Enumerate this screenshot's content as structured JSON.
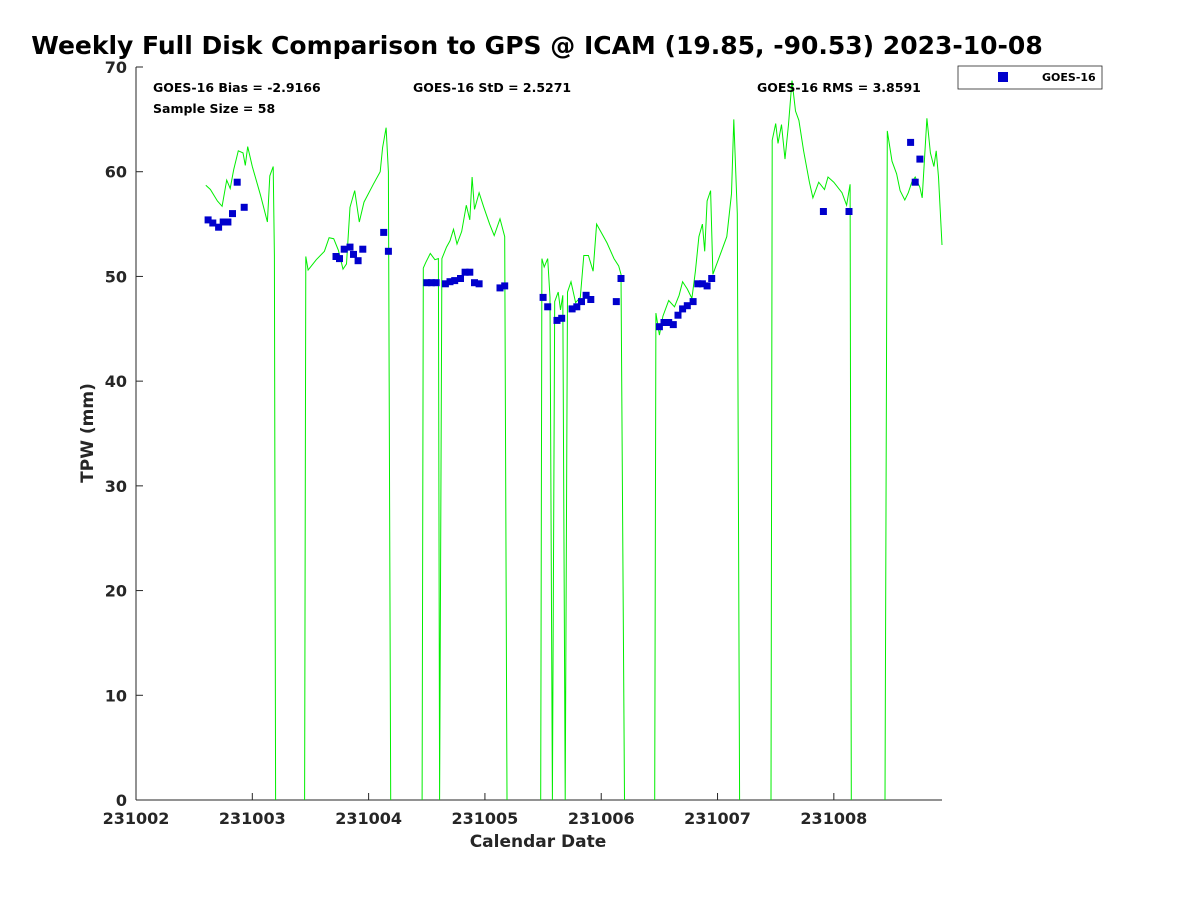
{
  "chart_data": {
    "type": "scatter",
    "title": "Weekly Full Disk Comparison to GPS @ ICAM (19.85, -90.53) 2023-10-08",
    "xlabel": "Calendar Date",
    "ylabel": "TPW (mm)",
    "xlim": [
      231002,
      231008.93
    ],
    "ylim": [
      0,
      70
    ],
    "x_ticks": [
      231002,
      231003,
      231004,
      231005,
      231006,
      231007,
      231008
    ],
    "x_tick_labels": [
      "231002",
      "231003",
      "231004",
      "231005",
      "231006",
      "231007",
      "231008"
    ],
    "y_ticks": [
      0,
      10,
      20,
      30,
      40,
      50,
      60,
      70
    ],
    "y_tick_labels": [
      "0",
      "10",
      "20",
      "30",
      "40",
      "50",
      "60",
      "70"
    ],
    "grid": false,
    "legend_position": "outside-top-right",
    "annotations": {
      "bias": "GOES-16 Bias = -2.9166",
      "std": "GOES-16 StD = 2.5271",
      "rms": "GOES-16 RMS = 3.8591",
      "sample_size": "Sample Size = 58"
    },
    "series": [
      {
        "name": "GOES-16",
        "kind": "scatter",
        "marker": "square",
        "color": "#0000cc",
        "points": [
          [
            231002.62,
            55.4
          ],
          [
            231002.66,
            55.1
          ],
          [
            231002.71,
            54.7
          ],
          [
            231002.75,
            55.2
          ],
          [
            231002.79,
            55.2
          ],
          [
            231002.83,
            56.0
          ],
          [
            231002.87,
            59.0
          ],
          [
            231002.93,
            56.6
          ],
          [
            231003.72,
            51.9
          ],
          [
            231003.75,
            51.7
          ],
          [
            231003.79,
            52.6
          ],
          [
            231003.84,
            52.8
          ],
          [
            231003.87,
            52.1
          ],
          [
            231003.91,
            51.5
          ],
          [
            231003.95,
            52.6
          ],
          [
            231004.13,
            54.2
          ],
          [
            231004.17,
            52.4
          ],
          [
            231004.5,
            49.4
          ],
          [
            231004.54,
            49.4
          ],
          [
            231004.58,
            49.4
          ],
          [
            231004.66,
            49.3
          ],
          [
            231004.7,
            49.5
          ],
          [
            231004.74,
            49.6
          ],
          [
            231004.79,
            49.8
          ],
          [
            231004.83,
            50.4
          ],
          [
            231004.87,
            50.4
          ],
          [
            231004.91,
            49.4
          ],
          [
            231004.95,
            49.3
          ],
          [
            231005.13,
            48.9
          ],
          [
            231005.17,
            49.1
          ],
          [
            231005.5,
            48.0
          ],
          [
            231005.54,
            47.1
          ],
          [
            231005.62,
            45.8
          ],
          [
            231005.66,
            46.0
          ],
          [
            231005.75,
            46.9
          ],
          [
            231005.79,
            47.1
          ],
          [
            231005.83,
            47.6
          ],
          [
            231005.87,
            48.2
          ],
          [
            231005.91,
            47.8
          ],
          [
            231006.13,
            47.6
          ],
          [
            231006.17,
            49.8
          ],
          [
            231006.5,
            45.2
          ],
          [
            231006.54,
            45.6
          ],
          [
            231006.58,
            45.6
          ],
          [
            231006.62,
            45.4
          ],
          [
            231006.66,
            46.3
          ],
          [
            231006.7,
            46.9
          ],
          [
            231006.74,
            47.2
          ],
          [
            231006.79,
            47.6
          ],
          [
            231006.83,
            49.3
          ],
          [
            231006.87,
            49.3
          ],
          [
            231006.91,
            49.1
          ],
          [
            231006.95,
            49.8
          ],
          [
            231007.91,
            56.2
          ],
          [
            231008.13,
            56.2
          ],
          [
            231008.66,
            62.8
          ],
          [
            231008.7,
            59.0
          ],
          [
            231008.74,
            61.2
          ]
        ]
      },
      {
        "name": "",
        "kind": "line",
        "color": "#00ee00",
        "segments": [
          [
            [
              231002.6,
              58.7
            ],
            [
              231002.64,
              58.3
            ],
            [
              231002.7,
              57.2
            ],
            [
              231002.74,
              56.7
            ],
            [
              231002.78,
              59.2
            ],
            [
              231002.81,
              58.4
            ],
            [
              231002.84,
              60.2
            ],
            [
              231002.88,
              62.0
            ],
            [
              231002.92,
              61.8
            ],
            [
              231002.94,
              60.6
            ],
            [
              231002.96,
              62.4
            ],
            [
              231003.0,
              60.5
            ],
            [
              231003.07,
              57.8
            ],
            [
              231003.13,
              55.2
            ],
            [
              231003.15,
              59.6
            ],
            [
              231003.18,
              60.5
            ],
            [
              231003.19,
              52.0
            ],
            [
              231003.2,
              0
            ]
          ],
          [
            [
              231003.45,
              0
            ],
            [
              231003.46,
              51.9
            ],
            [
              231003.48,
              50.6
            ],
            [
              231003.55,
              51.6
            ],
            [
              231003.62,
              52.4
            ],
            [
              231003.66,
              53.7
            ],
            [
              231003.7,
              53.6
            ],
            [
              231003.74,
              52.5
            ],
            [
              231003.78,
              50.7
            ],
            [
              231003.81,
              51.2
            ],
            [
              231003.84,
              56.6
            ],
            [
              231003.88,
              58.2
            ],
            [
              231003.92,
              55.2
            ],
            [
              231003.96,
              57.1
            ],
            [
              231004.04,
              58.8
            ],
            [
              231004.1,
              60.0
            ],
            [
              231004.12,
              62.3
            ],
            [
              231004.15,
              64.2
            ],
            [
              231004.17,
              60.0
            ],
            [
              231004.19,
              0
            ]
          ],
          [
            [
              231004.46,
              0
            ],
            [
              231004.47,
              50.8
            ],
            [
              231004.49,
              51.3
            ],
            [
              231004.53,
              52.2
            ],
            [
              231004.57,
              51.6
            ],
            [
              231004.6,
              51.7
            ],
            [
              231004.61,
              0
            ],
            [
              231004.63,
              51.7
            ],
            [
              231004.67,
              52.8
            ],
            [
              231004.7,
              53.4
            ],
            [
              231004.73,
              54.5
            ],
            [
              231004.76,
              53.1
            ],
            [
              231004.8,
              54.3
            ],
            [
              231004.84,
              56.8
            ],
            [
              231004.87,
              55.4
            ],
            [
              231004.89,
              59.5
            ],
            [
              231004.91,
              56.4
            ],
            [
              231004.95,
              58.0
            ],
            [
              231004.99,
              56.6
            ],
            [
              231005.04,
              55.0
            ],
            [
              231005.08,
              53.9
            ],
            [
              231005.13,
              55.5
            ],
            [
              231005.17,
              53.8
            ],
            [
              231005.19,
              0
            ]
          ],
          [
            [
              231005.48,
              0
            ],
            [
              231005.49,
              51.7
            ],
            [
              231005.51,
              50.9
            ],
            [
              231005.54,
              51.7
            ],
            [
              231005.56,
              48.0
            ],
            [
              231005.58,
              0
            ],
            [
              231005.6,
              47.6
            ],
            [
              231005.63,
              48.5
            ],
            [
              231005.65,
              46.8
            ],
            [
              231005.67,
              48.2
            ],
            [
              231005.69,
              0
            ],
            [
              231005.71,
              48.5
            ],
            [
              231005.74,
              49.5
            ],
            [
              231005.78,
              47.5
            ],
            [
              231005.82,
              48.0
            ],
            [
              231005.85,
              52.0
            ],
            [
              231005.89,
              52.0
            ],
            [
              231005.93,
              50.5
            ],
            [
              231005.96,
              55.0
            ],
            [
              231006.0,
              54.2
            ],
            [
              231006.05,
              53.2
            ],
            [
              231006.11,
              51.7
            ],
            [
              231006.15,
              51.0
            ],
            [
              231006.17,
              50.2
            ],
            [
              231006.2,
              0
            ]
          ],
          [
            [
              231006.46,
              0
            ],
            [
              231006.47,
              46.5
            ],
            [
              231006.5,
              44.4
            ],
            [
              231006.53,
              46.2
            ],
            [
              231006.58,
              47.7
            ],
            [
              231006.63,
              47.1
            ],
            [
              231006.67,
              48.2
            ],
            [
              231006.7,
              49.5
            ],
            [
              231006.74,
              48.8
            ],
            [
              231006.78,
              47.9
            ],
            [
              231006.81,
              50.5
            ],
            [
              231006.84,
              53.8
            ],
            [
              231006.87,
              55.0
            ],
            [
              231006.89,
              52.4
            ],
            [
              231006.91,
              57.2
            ],
            [
              231006.94,
              58.2
            ],
            [
              231006.96,
              50.2
            ],
            [
              231007.04,
              52.6
            ],
            [
              231007.08,
              53.8
            ],
            [
              231007.12,
              57.9
            ],
            [
              231007.14,
              65.0
            ],
            [
              231007.17,
              56.0
            ],
            [
              231007.19,
              0
            ]
          ],
          [
            [
              231007.46,
              0
            ],
            [
              231007.47,
              63.0
            ],
            [
              231007.5,
              64.6
            ],
            [
              231007.52,
              62.7
            ],
            [
              231007.55,
              64.5
            ],
            [
              231007.58,
              61.2
            ],
            [
              231007.61,
              64.5
            ],
            [
              231007.64,
              68.7
            ],
            [
              231007.67,
              65.8
            ],
            [
              231007.7,
              64.9
            ],
            [
              231007.74,
              62.0
            ],
            [
              231007.79,
              59.0
            ],
            [
              231007.82,
              57.5
            ],
            [
              231007.87,
              59.0
            ],
            [
              231007.92,
              58.3
            ],
            [
              231007.95,
              59.5
            ],
            [
              231008.0,
              59.0
            ],
            [
              231008.07,
              58.0
            ],
            [
              231008.11,
              56.8
            ],
            [
              231008.14,
              58.8
            ],
            [
              231008.15,
              0
            ]
          ],
          [
            [
              231008.44,
              0
            ],
            [
              231008.46,
              63.9
            ],
            [
              231008.5,
              61.0
            ],
            [
              231008.54,
              59.8
            ],
            [
              231008.57,
              58.2
            ],
            [
              231008.61,
              57.3
            ],
            [
              231008.64,
              58.0
            ],
            [
              231008.67,
              59.0
            ],
            [
              231008.7,
              59.5
            ],
            [
              231008.74,
              58.5
            ],
            [
              231008.76,
              57.5
            ],
            [
              231008.8,
              65.1
            ],
            [
              231008.83,
              61.8
            ],
            [
              231008.86,
              60.5
            ],
            [
              231008.88,
              62.0
            ],
            [
              231008.9,
              59.5
            ],
            [
              231008.93,
              53.0
            ]
          ]
        ]
      }
    ]
  }
}
